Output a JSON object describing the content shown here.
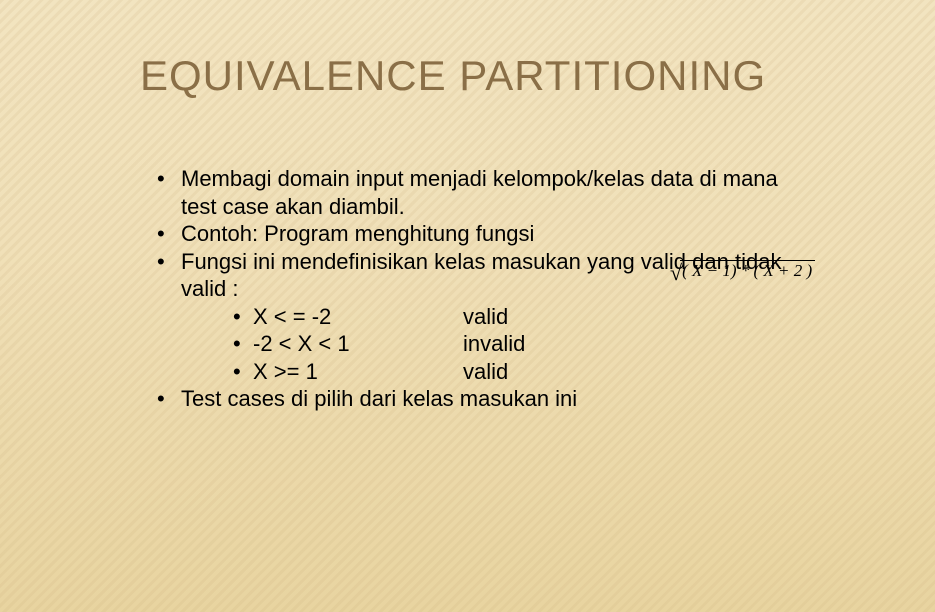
{
  "title": "EQUIVALENCE PARTITIONING",
  "bullets": {
    "b1": "Membagi domain input menjadi kelompok/kelas data di mana test case akan diambil.",
    "b2": "Contoh: Program menghitung fungsi",
    "b3": "Fungsi ini mendefinisikan kelas masukan yang valid dan tidak valid :",
    "b4": "Test cases di pilih dari kelas masukan ini"
  },
  "cases": {
    "c1a": "X < = -2",
    "c1b": "valid",
    "c2a": "-2 < X < 1",
    "c2b": "invalid",
    "c3a": "X >= 1",
    "c3b": "valid"
  },
  "formula": {
    "expr": "( X  − 1) * ( X  + 2 )"
  }
}
